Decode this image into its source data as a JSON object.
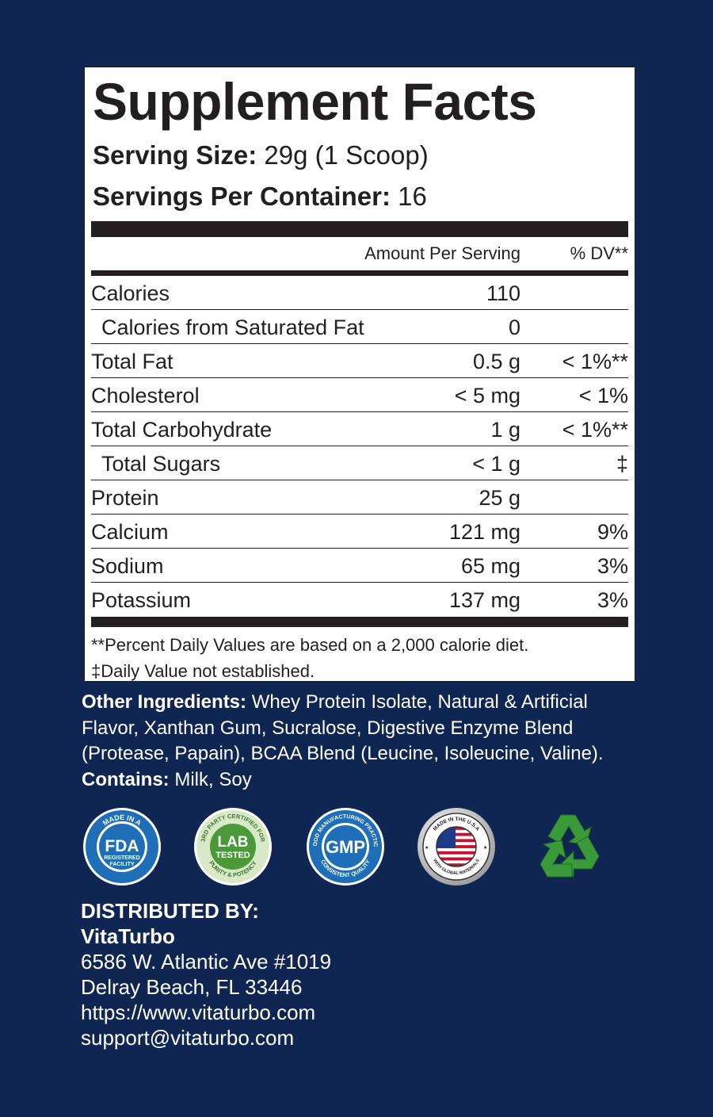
{
  "label": {
    "title": "Supplement Facts",
    "serving_size_label": "Serving Size:",
    "serving_size_value": " 29g (1 Scoop)",
    "servings_per_container_label": "Servings Per Container:",
    "servings_per_container_value": " 16",
    "col_amount": "Amount Per Serving",
    "col_dv": "% DV**",
    "rows": [
      {
        "name": "Calories",
        "amount": "110",
        "dv": ""
      },
      {
        "name": "Calories from Saturated Fat",
        "amount": "0",
        "dv": ""
      },
      {
        "name": "Total Fat",
        "amount": "0.5 g",
        "dv": "< 1%**"
      },
      {
        "name": "Cholesterol",
        "amount": "< 5 mg",
        "dv": "< 1%"
      },
      {
        "name": "Total Carbohydrate",
        "amount": "1 g",
        "dv": "< 1%**"
      },
      {
        "name": "Total Sugars",
        "amount": "< 1 g",
        "dv": "‡"
      },
      {
        "name": "Protein",
        "amount": "25 g",
        "dv": ""
      },
      {
        "name": "Calcium",
        "amount": "121 mg",
        "dv": "9%"
      },
      {
        "name": "Sodium",
        "amount": "65 mg",
        "dv": "3%"
      },
      {
        "name": "Potassium",
        "amount": "137 mg",
        "dv": "3%"
      }
    ],
    "footnote_1": "**Percent Daily Values are based on a 2,000 calorie diet.",
    "footnote_2": "‡Daily Value not established."
  },
  "ingredients": {
    "other_label": "Other Ingredients:",
    "other_text": " Whey Protein Isolate, Natural & Artificial Flavor, Xanthan Gum, Sucralose, Digestive Enzyme Blend (Protease, Papain), BCAA Blend (Leucine, Isoleucine, Valine).",
    "contains_label": "Contains:",
    "contains_text": " Milk, Soy"
  },
  "badges": {
    "fda": {
      "top": "MADE IN A",
      "main": "FDA",
      "sub1": "REGISTERED",
      "sub2": "FACILITY",
      "color": "#1f6fb8"
    },
    "lab": {
      "top": "3RD PARTY CERTIFIED FOR",
      "main1": "LAB",
      "main2": "TESTED",
      "bottom": "PURITY & POTENCY",
      "color": "#4a9a3a"
    },
    "gmp": {
      "top": "GOOD MANUFACTURING PRACTICE",
      "main": "GMP",
      "bottom": "CONSISTENT QUALITY",
      "color": "#1f6fb8"
    },
    "usa": {
      "top": "MADE IN THE U.S.A",
      "bottom": "WITH GLOBAL MATERIALS"
    },
    "recycle": {
      "icon": "recycle-icon",
      "color": "#3a9a3a"
    }
  },
  "distributor": {
    "heading": "DISTRIBUTED BY:",
    "company": "VitaTurbo",
    "address1": "6586 W. Atlantic Ave #1019",
    "address2": "Delray Beach, FL 33446",
    "website": "https://www.vitaturbo.com",
    "email": "support@vitaturbo.com"
  }
}
